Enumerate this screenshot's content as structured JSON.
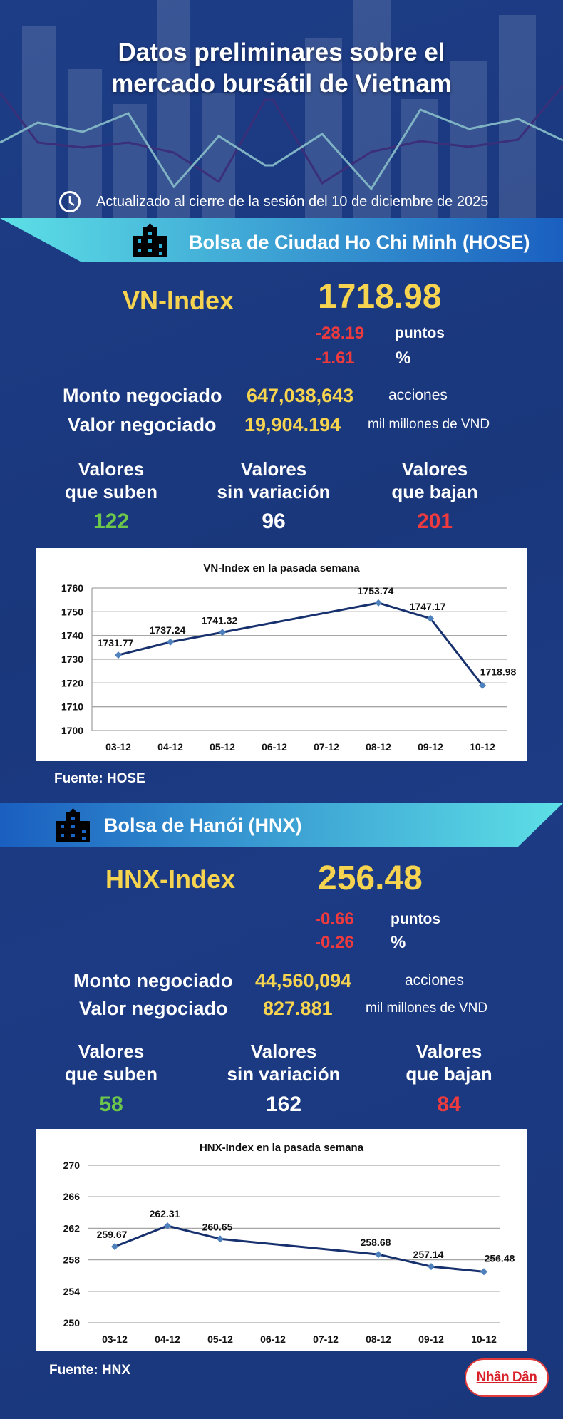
{
  "header": {
    "title_line1": "Datos preliminares sobre el",
    "title_line2": "mercado bursátil de Vietnam",
    "updated": "Actualizado al cierre de la sesión del 10 de diciembre de 2025",
    "icon": "clock-icon"
  },
  "colors": {
    "up": "#6cc74b",
    "down": "#ec3a3e",
    "highlight": "#f6d44f",
    "background": "#1c3b82",
    "line": "#17306e",
    "marker": "#4f81bd"
  },
  "hose": {
    "banner": "Bolsa de Ciudad Ho Chi Minh (HOSE)",
    "index_label": "VN-Index",
    "index_value": "1718.98",
    "change_points": "-28.19",
    "points_unit": "puntos",
    "change_percent": "-1.61",
    "percent_unit": "%",
    "volume_label": "Monto negociado",
    "volume_value": "647,038,643",
    "volume_unit": "acciones",
    "value_label": "Valor negociado",
    "value_value": "19,904.194",
    "value_unit": "mil millones de VND",
    "advancers_label1": "Valores",
    "advancers_label2": "que suben",
    "advancers": "122",
    "unchanged_label1": "Valores",
    "unchanged_label2": "sin variación",
    "unchanged": "96",
    "decliners_label1": "Valores",
    "decliners_label2": "que bajan",
    "decliners": "201",
    "source": "Fuente: HOSE"
  },
  "hnx": {
    "banner": "Bolsa de Hanói (HNX)",
    "index_label": "HNX-Index",
    "index_value": "256.48",
    "change_points": "-0.66",
    "points_unit": "puntos",
    "change_percent": "-0.26",
    "percent_unit": "%",
    "volume_label": "Monto negociado",
    "volume_value": "44,560,094",
    "volume_unit": "acciones",
    "value_label": "Valor negociado",
    "value_value": "827.881",
    "value_unit": "mil millones de VND",
    "advancers_label1": "Valores",
    "advancers_label2": "que suben",
    "advancers": "58",
    "unchanged_label1": "Valores",
    "unchanged_label2": "sin variación",
    "unchanged": "162",
    "decliners_label1": "Valores",
    "decliners_label2": "que bajan",
    "decliners": "84",
    "source": "Fuente:  HNX"
  },
  "logo": "Nhân Dân",
  "chart_data": [
    {
      "type": "line",
      "title": "VN-Index en la pasada semana",
      "categories": [
        "03-12",
        "04-12",
        "05-12",
        "06-12",
        "07-12",
        "08-12",
        "09-12",
        "10-12"
      ],
      "values": [
        1731.77,
        1737.24,
        1741.32,
        null,
        null,
        1753.74,
        1747.17,
        1718.98
      ],
      "data_labels": [
        "1731.77",
        "1737.24",
        "1741.32",
        "",
        "",
        "1753.74",
        "1747.17",
        "1718.98"
      ],
      "ylim": [
        1700,
        1760
      ],
      "yticks": [
        1700,
        1710,
        1720,
        1730,
        1740,
        1750,
        1760
      ],
      "grid": true,
      "xlabel": "",
      "ylabel": ""
    },
    {
      "type": "line",
      "title": "HNX-Index en la pasada semana",
      "categories": [
        "03-12",
        "04-12",
        "05-12",
        "06-12",
        "07-12",
        "08-12",
        "09-12",
        "10-12"
      ],
      "values": [
        259.67,
        262.31,
        260.65,
        null,
        null,
        258.68,
        257.14,
        256.48
      ],
      "data_labels": [
        "259.67",
        "262.31",
        "260.65",
        "",
        "",
        "258.68",
        "257.14",
        "256.48"
      ],
      "ylim": [
        250,
        270
      ],
      "yticks": [
        250,
        254,
        258,
        262,
        266,
        270
      ],
      "grid": true,
      "xlabel": "",
      "ylabel": ""
    }
  ]
}
